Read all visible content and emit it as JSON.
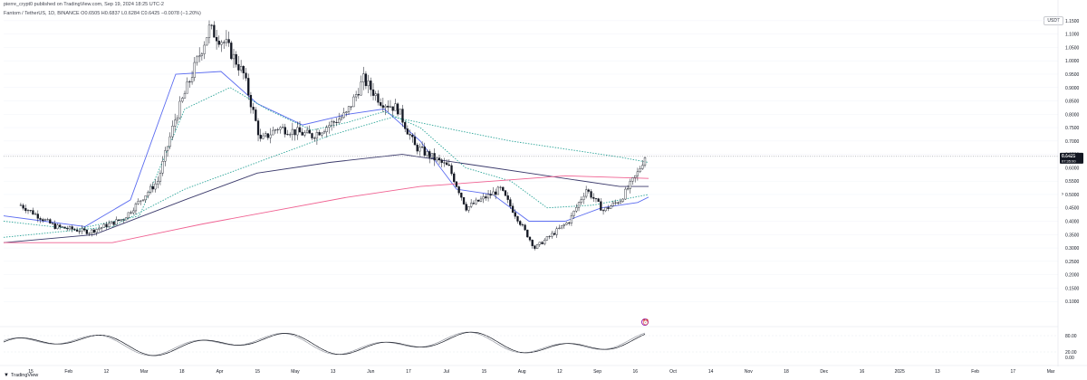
{
  "header": {
    "author_line": "pierre_crypt0 published on TradingView.com, Sep 19, 2024 18:25 UTC-2",
    "symbol_line": "Fantom / TetherUS, 1D, BINANCE  O0.6505  H0.6837  L0.6284  C0.6425  −0.0078 (−1.20%)"
  },
  "pair_badge": "USDT",
  "price_label": {
    "value": "0.6425",
    "countdown": "07:35:00"
  },
  "footer": {
    "brand": "TradingView",
    "logo": "tv-logo-icon"
  },
  "alert_icon": "alert-icon",
  "colors": {
    "candle": "#131722",
    "ma_blue": "#5b6cf0",
    "ma_dotted": "#2fa69a",
    "ma_dark": "#3b3a6b",
    "ma_pink": "#f06292",
    "osc_black": "#131722",
    "osc_gray": "#9598a1",
    "price_line": "#787b86"
  },
  "chart_data": {
    "type": "candlestick",
    "x_ticks": [
      "15",
      "Feb",
      "12",
      "Mar",
      "18",
      "Apr",
      "15",
      "May",
      "13",
      "Jun",
      "17",
      "Jul",
      "15",
      "Aug",
      "12",
      "Sep",
      "16",
      "Oct",
      "14",
      "Nov",
      "18",
      "Dec",
      "16",
      "2025",
      "13",
      "Feb",
      "17",
      "Mar"
    ],
    "y_ticks": [
      "1.1500",
      "1.1000",
      "1.0500",
      "1.0000",
      "0.9500",
      "0.9000",
      "0.8500",
      "0.8000",
      "0.7500",
      "0.7000",
      "0.6500",
      "0.6000",
      "0.5500",
      "0.5000",
      "0.4500",
      "0.4000",
      "0.3500",
      "0.3000",
      "0.2500",
      "0.2000",
      "0.1500",
      "0.1000"
    ],
    "ylim": [
      0.06,
      1.18
    ],
    "current_price": 0.6425,
    "price_path": [
      {
        "date": "2024-01-08",
        "close": 0.46
      },
      {
        "date": "2024-01-22",
        "close": 0.38
      },
      {
        "date": "2024-02-05",
        "close": 0.36
      },
      {
        "date": "2024-02-19",
        "close": 0.41
      },
      {
        "date": "2024-03-04",
        "close": 0.55
      },
      {
        "date": "2024-03-11",
        "close": 0.78
      },
      {
        "date": "2024-03-18",
        "close": 0.95
      },
      {
        "date": "2024-03-25",
        "close": 1.12
      },
      {
        "date": "2024-04-01",
        "close": 1.06
      },
      {
        "date": "2024-04-08",
        "close": 0.95
      },
      {
        "date": "2024-04-15",
        "close": 0.7
      },
      {
        "date": "2024-04-22",
        "close": 0.75
      },
      {
        "date": "2024-05-06",
        "close": 0.72
      },
      {
        "date": "2024-05-20",
        "close": 0.8
      },
      {
        "date": "2024-05-27",
        "close": 0.93
      },
      {
        "date": "2024-06-03",
        "close": 0.85
      },
      {
        "date": "2024-06-10",
        "close": 0.82
      },
      {
        "date": "2024-06-17",
        "close": 0.68
      },
      {
        "date": "2024-07-01",
        "close": 0.6
      },
      {
        "date": "2024-07-08",
        "close": 0.45
      },
      {
        "date": "2024-07-22",
        "close": 0.52
      },
      {
        "date": "2024-08-05",
        "close": 0.3
      },
      {
        "date": "2024-08-19",
        "close": 0.4
      },
      {
        "date": "2024-08-26",
        "close": 0.52
      },
      {
        "date": "2024-09-02",
        "close": 0.44
      },
      {
        "date": "2024-09-09",
        "close": 0.48
      },
      {
        "date": "2024-09-16",
        "close": 0.58
      },
      {
        "date": "2024-09-19",
        "close": 0.6425
      }
    ],
    "moving_averages": [
      {
        "name": "",
        "style": "solid",
        "color": "#5b6cf0",
        "points": [
          [
            0,
            0.42
          ],
          [
            45,
            0.4
          ],
          [
            90,
            0.38
          ],
          [
            140,
            0.48
          ],
          [
            190,
            0.95
          ],
          [
            240,
            0.96
          ],
          [
            280,
            0.84
          ],
          [
            330,
            0.76
          ],
          [
            380,
            0.8
          ],
          [
            420,
            0.82
          ],
          [
            460,
            0.7
          ],
          [
            500,
            0.52
          ],
          [
            540,
            0.5
          ],
          [
            580,
            0.4
          ],
          [
            620,
            0.4
          ],
          [
            660,
            0.45
          ],
          [
            700,
            0.47
          ],
          [
            712,
            0.49
          ]
        ]
      },
      {
        "name": "",
        "style": "dotted",
        "color": "#2fa69a",
        "points": [
          [
            0,
            0.4
          ],
          [
            80,
            0.37
          ],
          [
            150,
            0.42
          ],
          [
            200,
            0.82
          ],
          [
            250,
            0.9
          ],
          [
            290,
            0.82
          ],
          [
            340,
            0.74
          ],
          [
            380,
            0.77
          ],
          [
            420,
            0.81
          ],
          [
            460,
            0.75
          ],
          [
            510,
            0.6
          ],
          [
            560,
            0.55
          ],
          [
            600,
            0.45
          ],
          [
            650,
            0.46
          ],
          [
            712,
            0.5
          ]
        ]
      },
      {
        "name": "",
        "style": "dotted",
        "color": "#2fa69a",
        "points": [
          [
            0,
            0.34
          ],
          [
            120,
            0.38
          ],
          [
            200,
            0.52
          ],
          [
            280,
            0.62
          ],
          [
            360,
            0.72
          ],
          [
            430,
            0.79
          ],
          [
            500,
            0.74
          ],
          [
            560,
            0.7
          ],
          [
            620,
            0.67
          ],
          [
            680,
            0.64
          ],
          [
            712,
            0.62
          ]
        ]
      },
      {
        "name": "",
        "style": "solid",
        "color": "#3b3a6b",
        "points": [
          [
            0,
            0.32
          ],
          [
            100,
            0.35
          ],
          [
            200,
            0.48
          ],
          [
            280,
            0.58
          ],
          [
            360,
            0.62
          ],
          [
            440,
            0.65
          ],
          [
            520,
            0.61
          ],
          [
            600,
            0.57
          ],
          [
            680,
            0.53
          ],
          [
            712,
            0.53
          ]
        ]
      },
      {
        "name": "",
        "style": "solid",
        "color": "#f06292",
        "points": [
          [
            0,
            0.32
          ],
          [
            120,
            0.32
          ],
          [
            220,
            0.39
          ],
          [
            300,
            0.44
          ],
          [
            380,
            0.49
          ],
          [
            460,
            0.53
          ],
          [
            540,
            0.55
          ],
          [
            620,
            0.57
          ],
          [
            712,
            0.56
          ]
        ]
      }
    ],
    "oscillator": {
      "y_ticks": [
        "80.00",
        "20.00",
        "0.00"
      ],
      "ylim": [
        0,
        100
      ]
    },
    "grid": true
  }
}
